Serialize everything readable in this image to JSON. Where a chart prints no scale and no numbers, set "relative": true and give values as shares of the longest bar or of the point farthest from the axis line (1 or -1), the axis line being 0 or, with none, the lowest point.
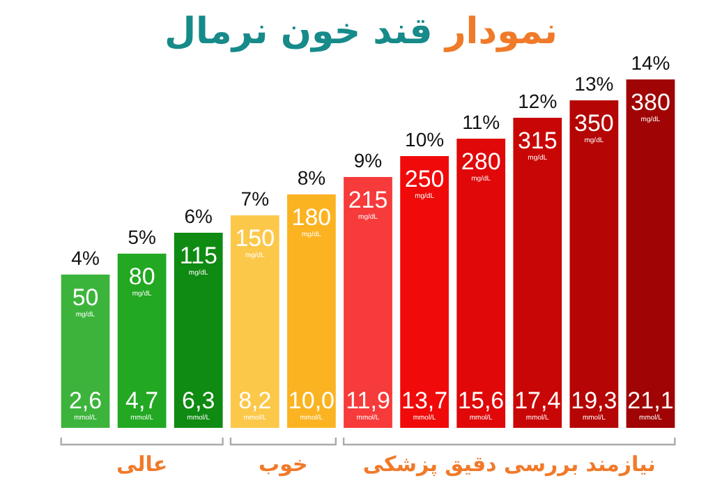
{
  "chart_data": {
    "type": "bar",
    "title": "نمودار قند خون نرمال",
    "relative": true,
    "categories": [
      "4%",
      "5%",
      "6%",
      "7%",
      "8%",
      "9%",
      "10%",
      "11%",
      "12%",
      "13%",
      "14%"
    ],
    "values": [
      0.44,
      0.5,
      0.56,
      0.61,
      0.67,
      0.72,
      0.78,
      0.83,
      0.89,
      0.94,
      1
    ],
    "colors": [
      "#3cb43c",
      "#22a822",
      "#0f8a12",
      "#fcc84a",
      "#fbb321",
      "#f73a3a",
      "#f00a0a",
      "#e00808",
      "#c90606",
      "#b50505",
      "#a00404"
    ],
    "annotations": [
      "50",
      "mg/dL",
      "2,6",
      "mmol/L",
      "80",
      "mg/dL",
      "4,7",
      "mmol/L",
      "115",
      "mg/dL",
      "6,3",
      "mmol/L",
      "150",
      "mg/dL",
      "8,2",
      "mmol/L",
      "180",
      "mg/dL",
      "10,0",
      "mmol/L",
      "215",
      "mg/dL",
      "11,9",
      "mmol/L",
      "250",
      "mg/dL",
      "13,7",
      "mmol/L",
      "280",
      "mg/dL",
      "15,6",
      "mmol/L",
      "315",
      "mg/dL",
      "17,4",
      "mmol/L",
      "350",
      "mg/dL",
      "19,3",
      "mmol/L",
      "380",
      "mg/dL",
      "21,1",
      "mmol/L",
      "عالی",
      "خوب",
      "نیازمند بررسی دقیق پزشکی"
    ]
  }
}
